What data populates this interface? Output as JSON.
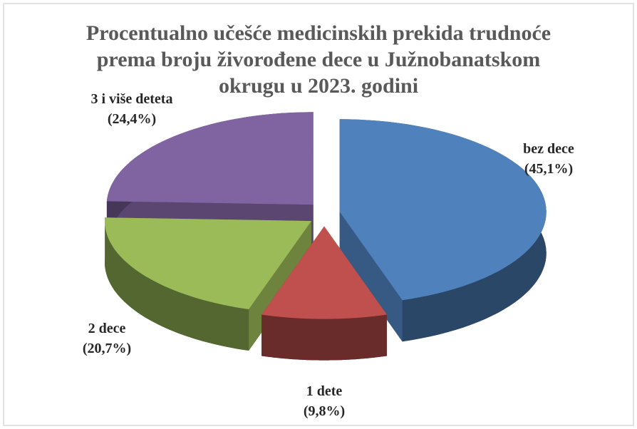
{
  "chart_data": {
    "type": "pie3d",
    "title": "Procentualno učešće medicinskih prekida trudnoće prema broju živorođene dece u Južnobanatskom okrugu u 2023. godini",
    "categories": [
      "bez dece",
      "1 dete",
      "2 dece",
      "3 i više deteta"
    ],
    "values": [
      45.1,
      9.8,
      20.7,
      24.4
    ],
    "value_labels": [
      "(45,1%)",
      "(9,8%)",
      "(20,7%)",
      "(24,4%)"
    ],
    "colors": [
      "#4f81bd",
      "#c0504d",
      "#9bbb59",
      "#8064a2"
    ]
  }
}
